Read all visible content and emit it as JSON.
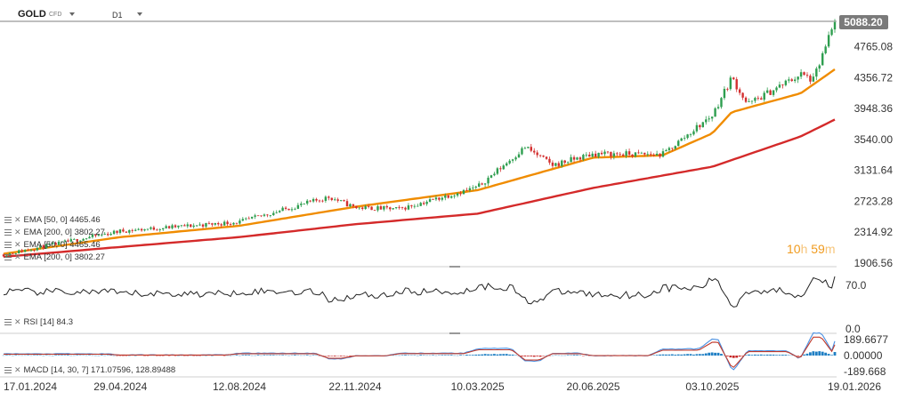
{
  "toolbar": {
    "symbol": "GOLD",
    "symbol_type": "CFD",
    "timeframe": "D1"
  },
  "timer": {
    "hours": "10",
    "h_unit": "h",
    "minutes": "59",
    "m_unit": "m"
  },
  "indicators": [
    {
      "label": "EMA [50, 0] 4465.46"
    },
    {
      "label": "EMA [200, 0] 3802.27"
    },
    {
      "label": "EMA [50, 0] 4465.46"
    },
    {
      "label": "EMA [200, 0] 3802.27"
    }
  ],
  "rsi_label": "RSI [14] 84.3",
  "macd_label": "MACD [14, 30, 7] 171.07596,  128.89488",
  "colors": {
    "up": "#2e9e4f",
    "down": "#d32f2f",
    "ema50": "#f08c00",
    "ema200": "#d42a2a",
    "rsi": "#222222",
    "macd_line": "#4a90e2",
    "signal_line": "#c0392b",
    "hist_pos": "#1f7fc4",
    "hist_neg": "#c62828",
    "price_tag": "#7a7a7a"
  },
  "chart_data": [
    {
      "type": "candlestick",
      "instrument": "GOLD",
      "timeframe": "D1",
      "y_ticks": [
        1906.56,
        2314.92,
        2723.28,
        3131.64,
        3540.0,
        3948.36,
        4356.72,
        4765.08
      ],
      "y_tick_labels": [
        "1906.56",
        "2314.92",
        "2723.28",
        "3131.64",
        "3540.00",
        "3948.36",
        "4356.72",
        "4765.08"
      ],
      "ylim": [
        1906.56,
        5088.2
      ],
      "last_price": 5088.2,
      "last_price_label": "5088.20",
      "x_tick_labels": [
        "17.01.2024",
        "29.04.2024",
        "12.08.2024",
        "22.11.2024",
        "10.03.2025",
        "20.06.2025",
        "03.10.2025",
        "19.01.2026"
      ],
      "price_keypoints": [
        [
          "17.01.2024",
          2020
        ],
        [
          "29.04.2024",
          2330
        ],
        [
          "12.08.2024",
          2450
        ],
        [
          "30.10.2024",
          2780
        ],
        [
          "22.11.2024",
          2640
        ],
        [
          "31.12.2024",
          2620
        ],
        [
          "10.03.2025",
          2910
        ],
        [
          "21.04.2025",
          3440
        ],
        [
          "15.05.2025",
          3200
        ],
        [
          "20.06.2025",
          3350
        ],
        [
          "20.08.2025",
          3340
        ],
        [
          "03.10.2025",
          3860
        ],
        [
          "20.10.2025",
          4360
        ],
        [
          "03.11.2025",
          4000
        ],
        [
          "20.12.2025",
          4400
        ],
        [
          "31.12.2025",
          4320
        ],
        [
          "19.01.2026",
          5088.2
        ]
      ],
      "ema50_keypoints": [
        [
          "17.01.2024",
          2030
        ],
        [
          "29.04.2024",
          2250
        ],
        [
          "12.08.2024",
          2400
        ],
        [
          "22.11.2024",
          2650
        ],
        [
          "10.03.2025",
          2870
        ],
        [
          "20.06.2025",
          3300
        ],
        [
          "20.08.2025",
          3330
        ],
        [
          "03.10.2025",
          3620
        ],
        [
          "20.10.2025",
          3900
        ],
        [
          "20.12.2025",
          4150
        ],
        [
          "19.01.2026",
          4465.46
        ]
      ],
      "ema200_keypoints": [
        [
          "17.01.2024",
          1990
        ],
        [
          "29.04.2024",
          2120
        ],
        [
          "12.08.2024",
          2250
        ],
        [
          "22.11.2024",
          2420
        ],
        [
          "10.03.2025",
          2560
        ],
        [
          "20.06.2025",
          2900
        ],
        [
          "03.10.2025",
          3180
        ],
        [
          "20.12.2025",
          3580
        ],
        [
          "19.01.2026",
          3802.27
        ]
      ],
      "series": [
        {
          "name": "EMA [50, 0]",
          "last": 4465.46
        },
        {
          "name": "EMA [200, 0]",
          "last": 3802.27
        }
      ]
    },
    {
      "type": "line",
      "name": "RSI [14]",
      "last": 84.3,
      "y_ticks": [
        0.0,
        70.0
      ],
      "y_tick_labels": [
        "0.0",
        "70.0"
      ]
    },
    {
      "type": "bar",
      "name": "MACD [14, 30, 7]",
      "macd_last": 171.07596,
      "signal_last": 128.89488,
      "y_ticks": [
        189.6677,
        0.0,
        -189.668
      ],
      "y_tick_labels": [
        "189.6677",
        "0.00000",
        "-189.668"
      ]
    }
  ]
}
